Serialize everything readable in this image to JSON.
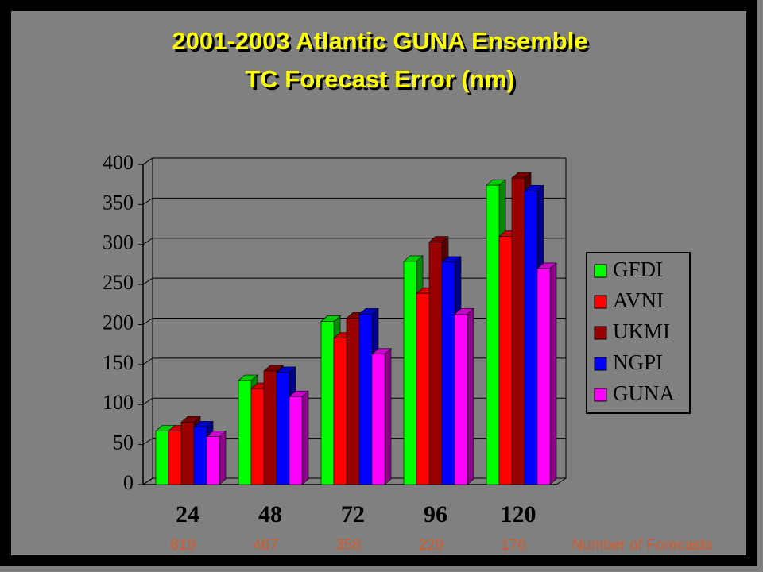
{
  "chart_data": {
    "type": "bar3d",
    "title": "2001-2003 Atlantic GUNA Ensemble",
    "subtitle": "TC Forecast Error (nm)",
    "categories": [
      "24",
      "48",
      "72",
      "96",
      "120"
    ],
    "series": [
      {
        "name": "GFDI",
        "color": "#00ff00",
        "values": [
          67,
          130,
          204,
          279,
          374
        ]
      },
      {
        "name": "AVNI",
        "color": "#ff0000",
        "values": [
          67,
          120,
          183,
          239,
          310
        ]
      },
      {
        "name": "UKMI",
        "color": "#990000",
        "values": [
          78,
          142,
          208,
          303,
          383
        ]
      },
      {
        "name": "NGPI",
        "color": "#0000ff",
        "values": [
          72,
          140,
          213,
          278,
          367
        ]
      },
      {
        "name": "GUNA",
        "color": "#ff00ff",
        "values": [
          60,
          110,
          163,
          213,
          270
        ]
      }
    ],
    "forecast_counts": [
      619,
      467,
      358,
      229,
      176
    ],
    "forecast_counts_label": "Number of Forecasts",
    "ylim": [
      0,
      400
    ],
    "yticks": [
      0,
      50,
      100,
      150,
      200,
      250,
      300,
      350,
      400
    ],
    "grid": true,
    "legend": "right"
  }
}
